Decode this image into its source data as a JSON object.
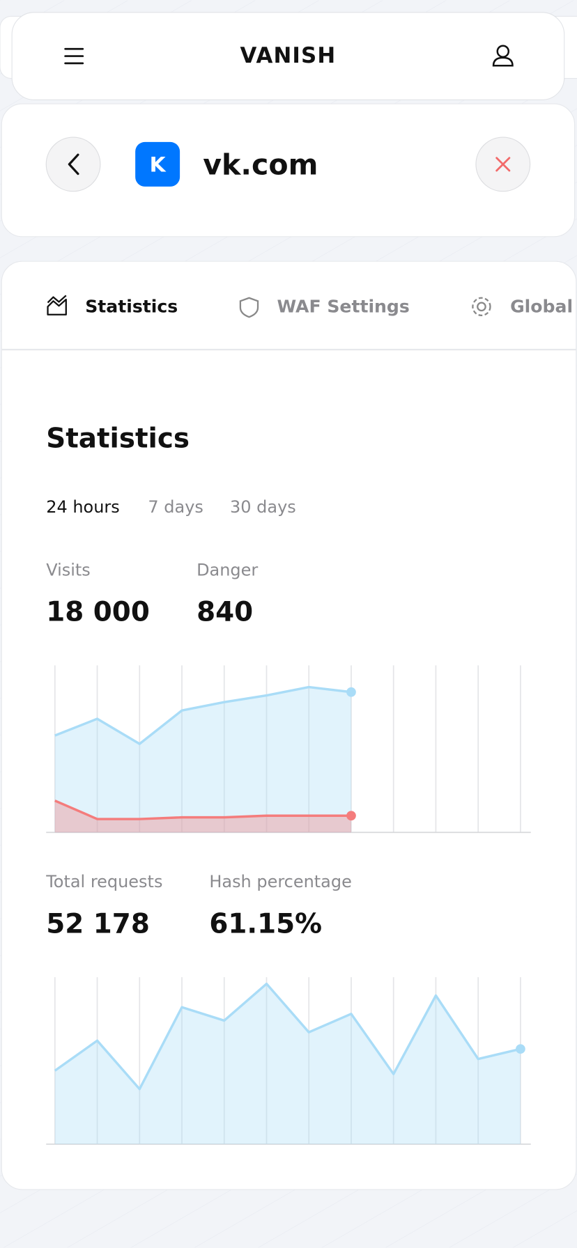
{
  "header": {
    "brand": "VANISH"
  },
  "site": {
    "name": "vk.com"
  },
  "tabs": [
    "Statistics",
    "WAF Settings",
    "Global"
  ],
  "section_title": "Statistics",
  "periods": [
    "24 hours",
    "7 days",
    "30 days"
  ],
  "stats1": [
    {
      "label": "Visits",
      "value": "18 000"
    },
    {
      "label": "Danger",
      "value": "840"
    }
  ],
  "chart1": {
    "type": "area",
    "ylim": [
      0,
      100
    ],
    "slots": 12,
    "series": [
      {
        "color": "#a9dcf7",
        "values": [
          58,
          68,
          53,
          73,
          78,
          82,
          87,
          84,
          null,
          null,
          null,
          null
        ]
      },
      {
        "color": "#f47c7c",
        "values": [
          19,
          8,
          8,
          9,
          9,
          10,
          10,
          10,
          null,
          null,
          null,
          null
        ]
      }
    ]
  },
  "stats2": [
    {
      "label": "Total requests",
      "value": "52 178"
    },
    {
      "label": "Hash percentage",
      "value": "61.15%"
    }
  ],
  "chart2": {
    "type": "area",
    "ylim": [
      0,
      100
    ],
    "slots": 12,
    "series": [
      {
        "color": "#a9dcf7",
        "values": [
          44,
          62,
          33,
          82,
          74,
          96,
          67,
          78,
          42,
          89,
          51,
          57
        ]
      }
    ]
  }
}
